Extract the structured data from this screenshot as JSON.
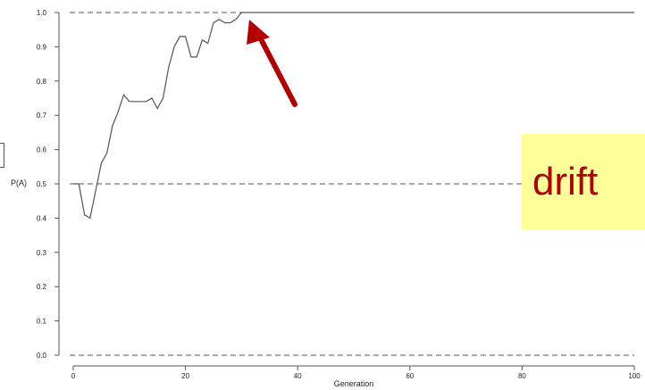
{
  "chart_data": {
    "type": "line",
    "xlabel": "Generation",
    "ylabel": "P(A)",
    "xlim": [
      0,
      100
    ],
    "ylim": [
      0,
      1
    ],
    "x_ticks": [
      "0",
      "20",
      "40",
      "60",
      "80",
      "100"
    ],
    "y_ticks": [
      "0.0",
      "0.1",
      "0.2",
      "0.3",
      "0.4",
      "0.5",
      "0.6",
      "0.7",
      "0.8",
      "0.9",
      "1.0"
    ],
    "reference_lines": [
      0,
      0.5,
      1.0
    ],
    "x": [
      0,
      1,
      2,
      3,
      4,
      5,
      6,
      7,
      8,
      9,
      10,
      11,
      12,
      13,
      14,
      15,
      16,
      17,
      18,
      19,
      20,
      21,
      22,
      23,
      24,
      25,
      26,
      27,
      28,
      29,
      30,
      31,
      32,
      33,
      34,
      35,
      36,
      37,
      38,
      39,
      40,
      41,
      42,
      43,
      44,
      45,
      46,
      47,
      48,
      49,
      50,
      51,
      52,
      53,
      54,
      55,
      56,
      57,
      58,
      59,
      60,
      61,
      62,
      63,
      64,
      65,
      66,
      67,
      68,
      69,
      70,
      71,
      72,
      73,
      74,
      75,
      76,
      77,
      78,
      79,
      80,
      81,
      82,
      83,
      84,
      85,
      86,
      87,
      88,
      89,
      90,
      91,
      92,
      93,
      94,
      95,
      96,
      97,
      98,
      99,
      100
    ],
    "series": [
      {
        "values": [
          0.5,
          0.5,
          0.41,
          0.4,
          0.48,
          0.56,
          0.59,
          0.67,
          0.71,
          0.76,
          0.74,
          0.74,
          0.74,
          0.74,
          0.75,
          0.72,
          0.75,
          0.84,
          0.9,
          0.93,
          0.93,
          0.87,
          0.87,
          0.92,
          0.91,
          0.97,
          0.98,
          0.97,
          0.97,
          0.98,
          1.0,
          1.0,
          1.0,
          1.0,
          1.0,
          1.0,
          1.0,
          1.0,
          1.0,
          1.0,
          1.0,
          1.0,
          1.0,
          1.0,
          1.0,
          1.0,
          1.0,
          1.0,
          1.0,
          1.0,
          1.0,
          1.0,
          1.0,
          1.0,
          1.0,
          1.0,
          1.0,
          1.0,
          1.0,
          1.0,
          1.0,
          1.0,
          1.0,
          1.0,
          1.0,
          1.0,
          1.0,
          1.0,
          1.0,
          1.0,
          1.0,
          1.0,
          1.0,
          1.0,
          1.0,
          1.0,
          1.0,
          1.0,
          1.0,
          1.0,
          1.0,
          1.0,
          1.0,
          1.0,
          1.0,
          1.0,
          1.0,
          1.0,
          1.0,
          1.0,
          1.0,
          1.0,
          1.0,
          1.0,
          1.0,
          1.0,
          1.0,
          1.0,
          1.0,
          1.0,
          1.0
        ],
        "color": "#555555"
      }
    ],
    "annotations": [
      {
        "label": "drift",
        "background": "#ffff99",
        "color": "#b00000"
      }
    ],
    "arrow": {
      "color": "#b30000",
      "points_to_x": 31,
      "points_to_y": 1.0
    },
    "grid": false,
    "legend": "none"
  }
}
